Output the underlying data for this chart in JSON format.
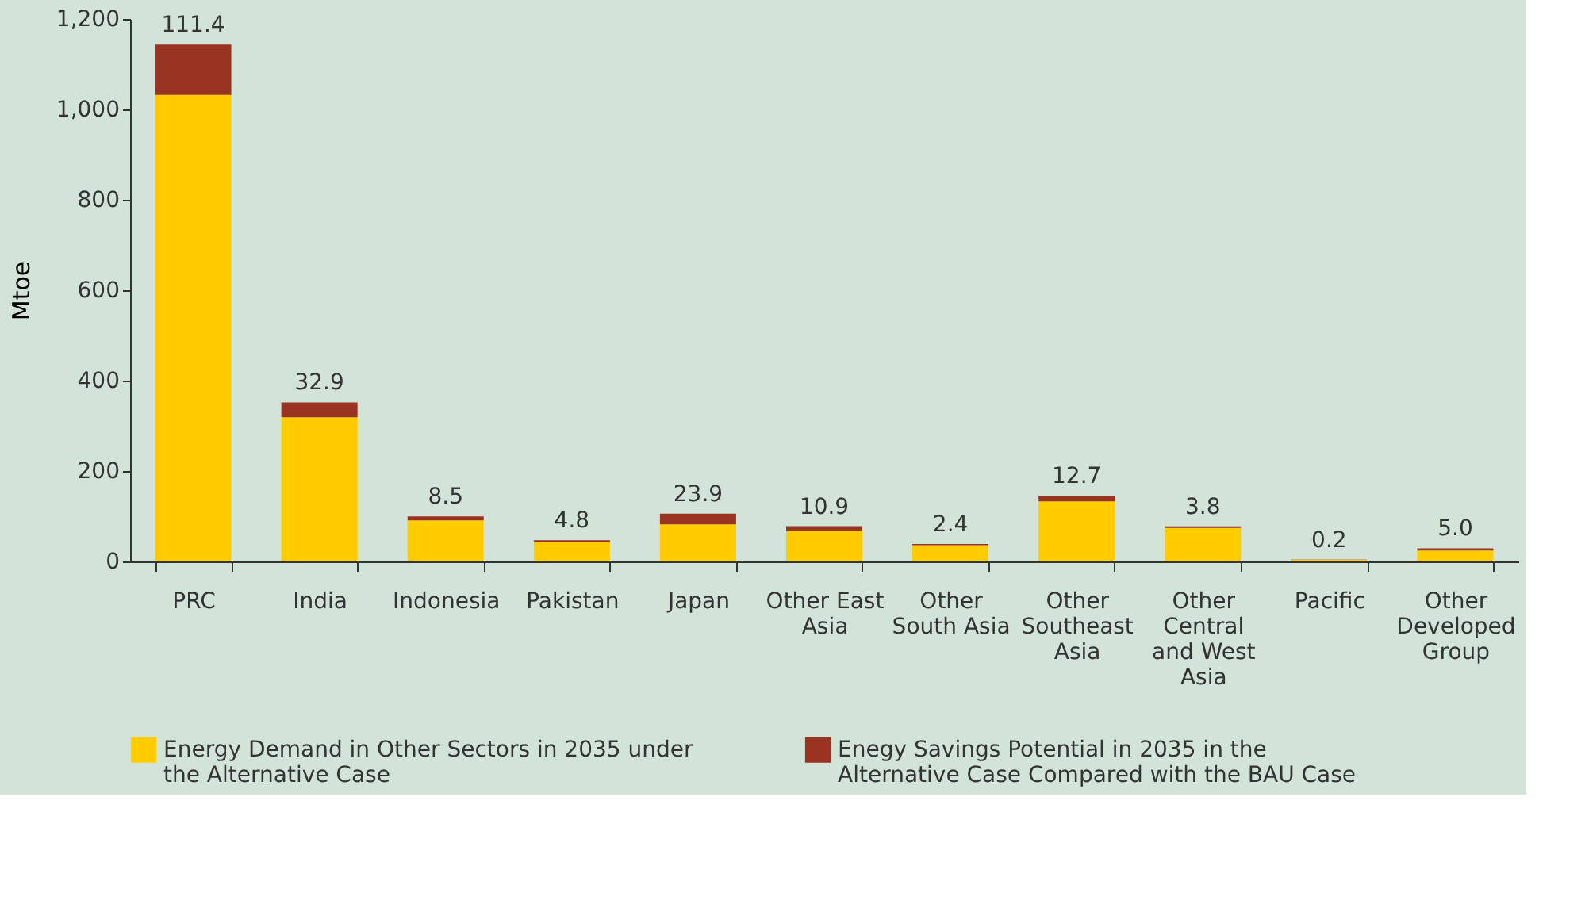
{
  "chart_data": {
    "type": "bar",
    "stacked": true,
    "ylabel": "Mtoe",
    "categories": [
      "PRC",
      "India",
      "Indonesia",
      "Pakistan",
      "Japan",
      "Other East Asia",
      "Other South Asia",
      "Other Southeast Asia",
      "Other Central and West Asia",
      "Pacific",
      "Other Developed Group"
    ],
    "series": [
      {
        "name": "Energy Demand in Other Sectors in 2035 under the Alternative Case",
        "color": "#ffcc00",
        "values": [
          1032,
          319,
          91,
          42,
          82,
          67,
          36,
          133,
          74,
          4,
          24
        ]
      },
      {
        "name": "Enegy Savings Potential in 2035 in the Alternative Case Compared with the BAU Case",
        "color": "#993322",
        "values": [
          111.4,
          32.9,
          8.5,
          4.8,
          23.9,
          10.9,
          2.4,
          12.7,
          3.8,
          0.2,
          5.0
        ],
        "value_labels": [
          "111.4",
          "32.9",
          "8.5",
          "4.8",
          "23.9",
          "10.9",
          "2.4",
          "12.7",
          "3.8",
          "0.2",
          "5.0"
        ]
      }
    ],
    "ylim": [
      0,
      1200
    ],
    "yticks": [
      0,
      200,
      400,
      600,
      800,
      {
        "value": 1000,
        "label": "1,000"
      },
      {
        "value": 1200,
        "label": "1,200"
      }
    ],
    "grid": false,
    "legend": "bottom"
  }
}
